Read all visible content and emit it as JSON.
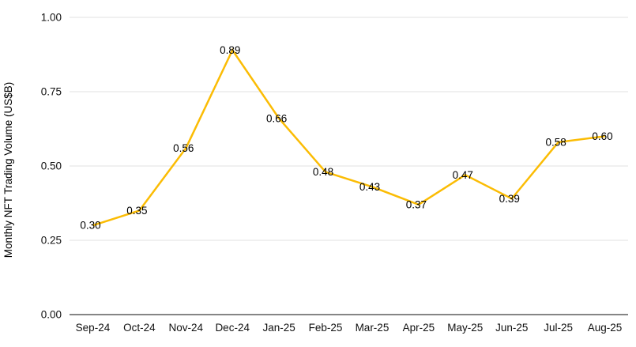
{
  "chart_data": {
    "type": "line",
    "title": "",
    "categories": [
      "Sep-24",
      "Oct-24",
      "Nov-24",
      "Dec-24",
      "Jan-25",
      "Feb-25",
      "Mar-25",
      "Apr-25",
      "May-25",
      "Jun-25",
      "Jul-25",
      "Aug-25"
    ],
    "values": [
      0.3,
      0.35,
      0.56,
      0.89,
      0.66,
      0.48,
      0.43,
      0.37,
      0.47,
      0.39,
      0.58,
      0.6
    ],
    "value_labels": [
      "0.30",
      "0.35",
      "0.56",
      "0.89",
      "0.66",
      "0.48",
      "0.43",
      "0.37",
      "0.47",
      "0.39",
      "0.58",
      "0.60"
    ],
    "xlabel": "",
    "ylabel": "Monthly NFT Trading Volume (US$B)",
    "ylim": [
      0,
      1
    ],
    "yticks": [
      0.0,
      0.25,
      0.5,
      0.75,
      1.0
    ],
    "ytick_labels": [
      "0.00",
      "0.25",
      "0.50",
      "0.75",
      "1.00"
    ],
    "grid": true,
    "legend_position": "none",
    "series_color": "#FBBC04",
    "gridline_color": "#E0E0E0",
    "axis_line_color": "#858585",
    "text_color": "#000000",
    "background_color": "#FFFFFF",
    "line_width": 2.5
  }
}
